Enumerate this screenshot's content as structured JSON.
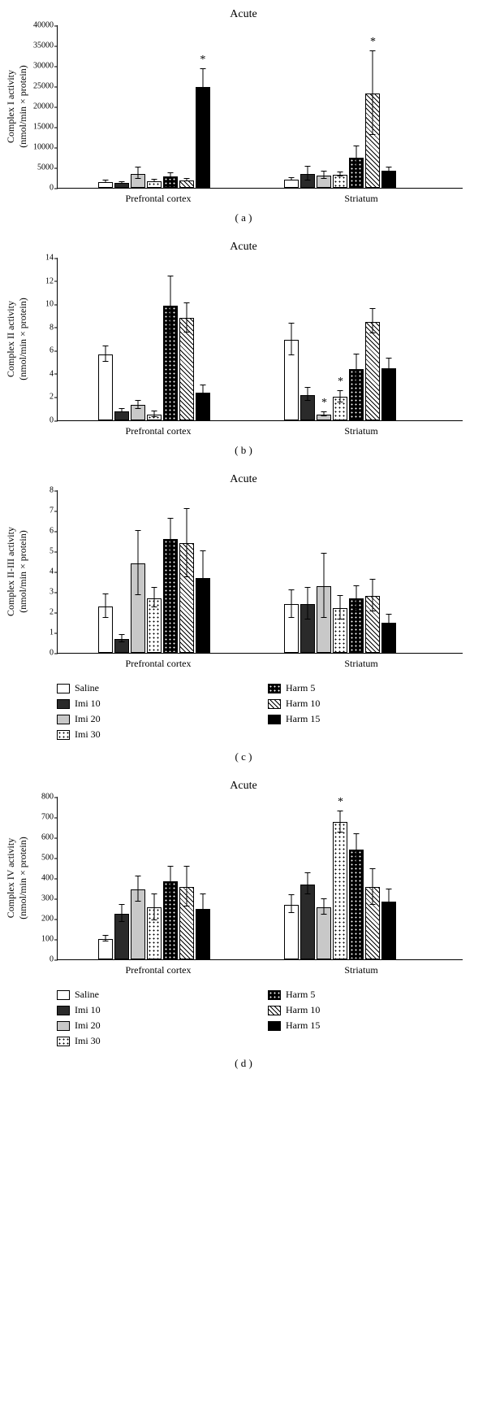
{
  "global": {
    "title": "Acute",
    "x_groups": [
      "Prefrontal cortex",
      "Striatum"
    ],
    "legend": [
      {
        "label": "Saline",
        "pattern": "pat-white"
      },
      {
        "label": "Imi 10",
        "pattern": "pat-dark"
      },
      {
        "label": "Imi 20",
        "pattern": "pat-gray"
      },
      {
        "label": "Imi 30",
        "pattern": "pat-dots-white"
      },
      {
        "label": "Harm 5",
        "pattern": "pat-dots-black"
      },
      {
        "label": "Harm 10",
        "pattern": "pat-hatch"
      },
      {
        "label": "Harm 15",
        "pattern": "pat-black"
      }
    ],
    "panel_labels": [
      "( a )",
      "( b )",
      "( c )",
      "( d )"
    ],
    "colors": {
      "axis": "#000000",
      "background": "#ffffff"
    },
    "font": {
      "axis_label_pt": 12,
      "tick_pt": 10,
      "title_pt": 14
    }
  },
  "charts": [
    {
      "id": "a",
      "ylabel": "Complex I activity\n(nmol/min × protein)",
      "ylim": [
        0,
        40000
      ],
      "ytick_step": 5000,
      "groups": [
        {
          "name": "Prefrontal cortex",
          "bars": [
            {
              "val": 1500,
              "err": 400,
              "sig": false
            },
            {
              "val": 1200,
              "err": 300,
              "sig": false
            },
            {
              "val": 3500,
              "err": 1500,
              "sig": false
            },
            {
              "val": 1600,
              "err": 400,
              "sig": false
            },
            {
              "val": 2800,
              "err": 800,
              "sig": false
            },
            {
              "val": 1800,
              "err": 400,
              "sig": false
            },
            {
              "val": 24800,
              "err": 4400,
              "sig": true
            }
          ]
        },
        {
          "name": "Striatum",
          "bars": [
            {
              "val": 2000,
              "err": 400,
              "sig": false
            },
            {
              "val": 3400,
              "err": 1800,
              "sig": false
            },
            {
              "val": 3000,
              "err": 1000,
              "sig": false
            },
            {
              "val": 3200,
              "err": 600,
              "sig": false
            },
            {
              "val": 7400,
              "err": 2800,
              "sig": false
            },
            {
              "val": 23200,
              "err": 10400,
              "sig": true
            },
            {
              "val": 4200,
              "err": 800,
              "sig": false
            }
          ]
        }
      ]
    },
    {
      "id": "b",
      "ylabel": "Complex II activity\n(nmol/min × protein)",
      "ylim": [
        0,
        14
      ],
      "ytick_step": 2,
      "groups": [
        {
          "name": "Prefrontal cortex",
          "bars": [
            {
              "val": 5.7,
              "err": 0.7,
              "sig": false
            },
            {
              "val": 0.8,
              "err": 0.2,
              "sig": false
            },
            {
              "val": 1.3,
              "err": 0.4,
              "sig": false
            },
            {
              "val": 0.5,
              "err": 0.3,
              "sig": false
            },
            {
              "val": 9.9,
              "err": 2.5,
              "sig": false
            },
            {
              "val": 8.8,
              "err": 1.3,
              "sig": false
            },
            {
              "val": 2.4,
              "err": 0.6,
              "sig": false
            }
          ]
        },
        {
          "name": "Striatum",
          "bars": [
            {
              "val": 6.9,
              "err": 1.4,
              "sig": false
            },
            {
              "val": 2.2,
              "err": 0.6,
              "sig": false
            },
            {
              "val": 0.5,
              "err": 0.2,
              "sig": true
            },
            {
              "val": 2.0,
              "err": 0.5,
              "sig": true
            },
            {
              "val": 4.4,
              "err": 1.3,
              "sig": false
            },
            {
              "val": 8.5,
              "err": 1.1,
              "sig": false
            },
            {
              "val": 4.5,
              "err": 0.8,
              "sig": false
            }
          ]
        }
      ]
    },
    {
      "id": "c",
      "ylabel": "Complex II-III activity\n(nmol/min × protein)",
      "ylim": [
        0,
        8
      ],
      "ytick_step": 1,
      "show_legend": true,
      "groups": [
        {
          "name": "Prefrontal cortex",
          "bars": [
            {
              "val": 2.3,
              "err": 0.6,
              "sig": false
            },
            {
              "val": 0.7,
              "err": 0.2,
              "sig": false
            },
            {
              "val": 4.4,
              "err": 1.6,
              "sig": false
            },
            {
              "val": 2.7,
              "err": 0.5,
              "sig": false
            },
            {
              "val": 5.6,
              "err": 1.0,
              "sig": false
            },
            {
              "val": 5.4,
              "err": 1.7,
              "sig": false
            },
            {
              "val": 3.7,
              "err": 1.3,
              "sig": false
            }
          ]
        },
        {
          "name": "Striatum",
          "bars": [
            {
              "val": 2.4,
              "err": 0.7,
              "sig": false
            },
            {
              "val": 2.4,
              "err": 0.8,
              "sig": false
            },
            {
              "val": 3.3,
              "err": 1.6,
              "sig": false
            },
            {
              "val": 2.2,
              "err": 0.6,
              "sig": false
            },
            {
              "val": 2.7,
              "err": 0.6,
              "sig": false
            },
            {
              "val": 2.8,
              "err": 0.8,
              "sig": false
            },
            {
              "val": 1.5,
              "err": 0.4,
              "sig": false
            }
          ]
        }
      ]
    },
    {
      "id": "d",
      "ylabel": "Complex IV activity\n(nmol/min × protein)",
      "ylim": [
        0,
        800
      ],
      "ytick_step": 100,
      "show_legend": true,
      "groups": [
        {
          "name": "Prefrontal cortex",
          "bars": [
            {
              "val": 100,
              "err": 15,
              "sig": false
            },
            {
              "val": 225,
              "err": 45,
              "sig": false
            },
            {
              "val": 345,
              "err": 65,
              "sig": false
            },
            {
              "val": 255,
              "err": 65,
              "sig": false
            },
            {
              "val": 385,
              "err": 70,
              "sig": false
            },
            {
              "val": 355,
              "err": 100,
              "sig": false
            },
            {
              "val": 250,
              "err": 70,
              "sig": false
            }
          ]
        },
        {
          "name": "Striatum",
          "bars": [
            {
              "val": 270,
              "err": 45,
              "sig": false
            },
            {
              "val": 370,
              "err": 55,
              "sig": false
            },
            {
              "val": 255,
              "err": 40,
              "sig": false
            },
            {
              "val": 675,
              "err": 55,
              "sig": true
            },
            {
              "val": 540,
              "err": 75,
              "sig": false
            },
            {
              "val": 355,
              "err": 90,
              "sig": false
            },
            {
              "val": 285,
              "err": 60,
              "sig": false
            }
          ]
        }
      ]
    }
  ]
}
